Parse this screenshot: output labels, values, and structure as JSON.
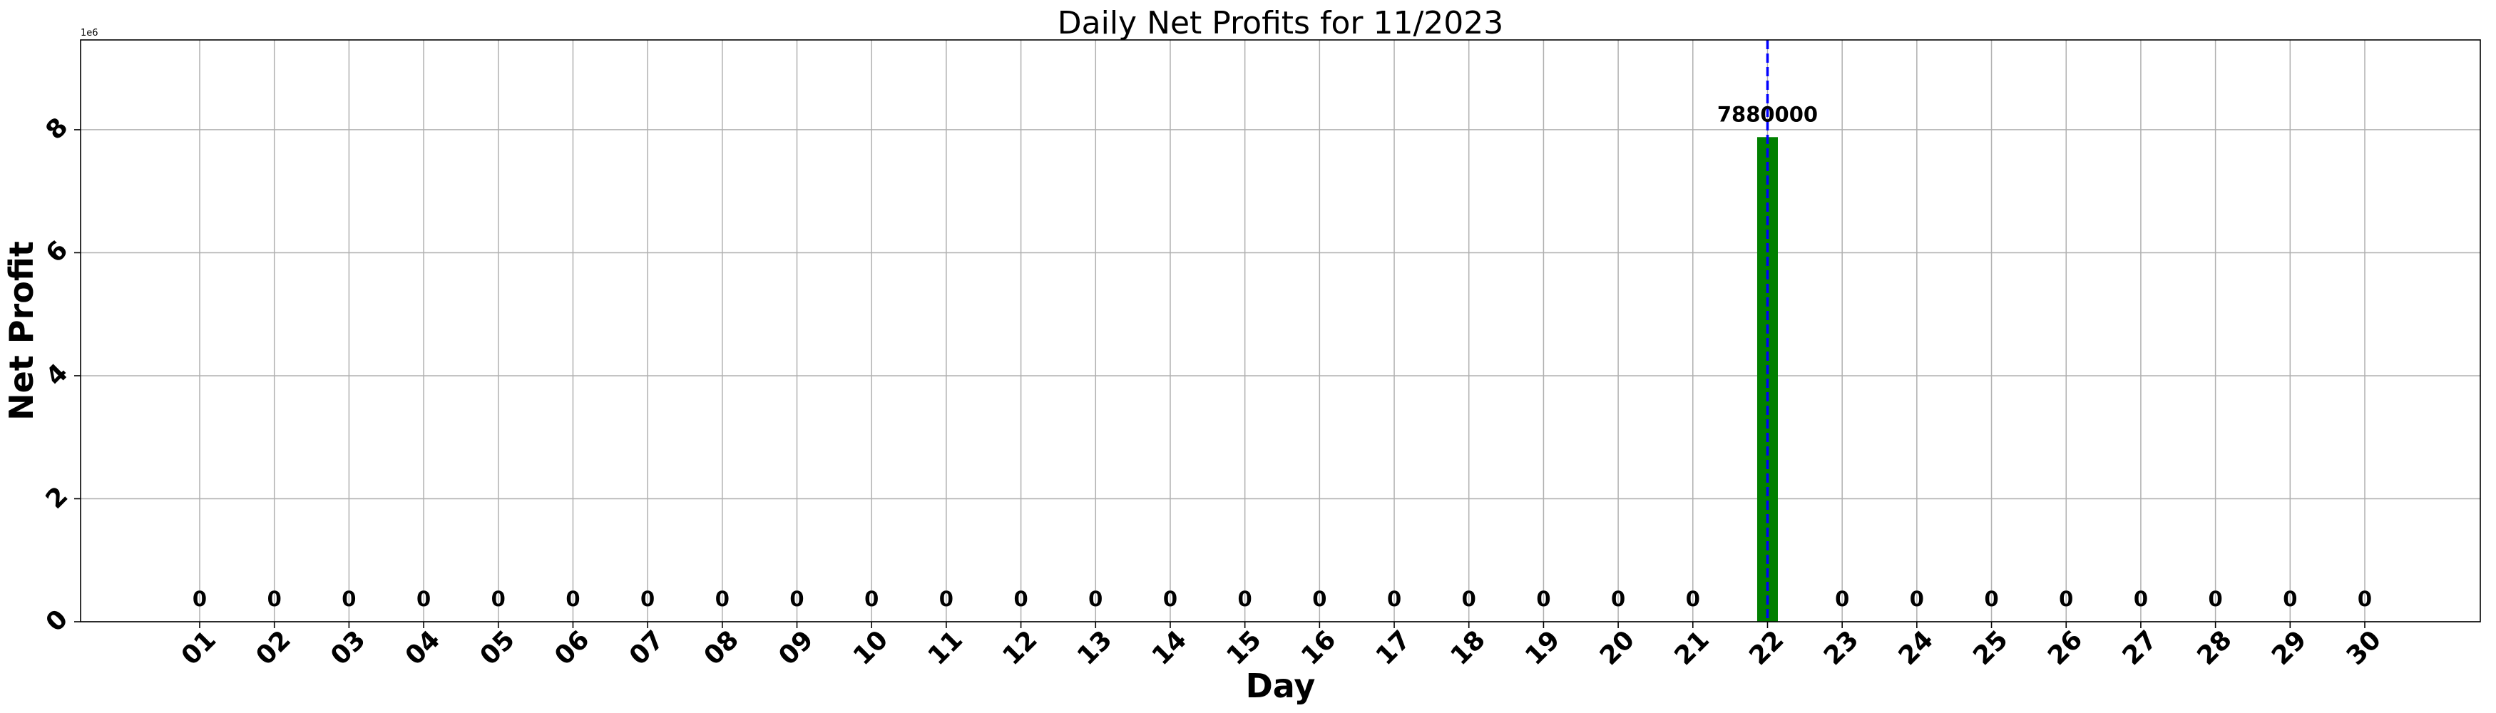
{
  "chart_data": {
    "type": "bar",
    "title": "Daily Net Profits for 11/2023",
    "xlabel": "Day",
    "ylabel": "Net Profit",
    "y_multiplier": "1e6",
    "categories": [
      "01",
      "02",
      "03",
      "04",
      "05",
      "06",
      "07",
      "08",
      "09",
      "10",
      "11",
      "12",
      "13",
      "14",
      "15",
      "16",
      "17",
      "18",
      "19",
      "20",
      "21",
      "22",
      "23",
      "24",
      "25",
      "26",
      "27",
      "28",
      "29",
      "30"
    ],
    "values": [
      0,
      0,
      0,
      0,
      0,
      0,
      0,
      0,
      0,
      0,
      0,
      0,
      0,
      0,
      0,
      0,
      0,
      0,
      0,
      0,
      0,
      7880000,
      0,
      0,
      0,
      0,
      0,
      0,
      0,
      0
    ],
    "value_labels": [
      "0",
      "0",
      "0",
      "0",
      "0",
      "0",
      "0",
      "0",
      "0",
      "0",
      "0",
      "0",
      "0",
      "0",
      "0",
      "0",
      "0",
      "0",
      "0",
      "0",
      "0",
      "7880000",
      "0",
      "0",
      "0",
      "0",
      "0",
      "0",
      "0",
      "0"
    ],
    "ylim": [
      0,
      9460000
    ],
    "yticks": [
      0,
      2000000,
      4000000,
      6000000,
      8000000
    ],
    "ytick_labels": [
      "0",
      "2",
      "4",
      "6",
      "8"
    ],
    "highlight_day": "22",
    "grid": true,
    "colors": {
      "bar": "#008000",
      "highlight_line": "#0000ff",
      "grid": "#b0b0b0"
    }
  }
}
